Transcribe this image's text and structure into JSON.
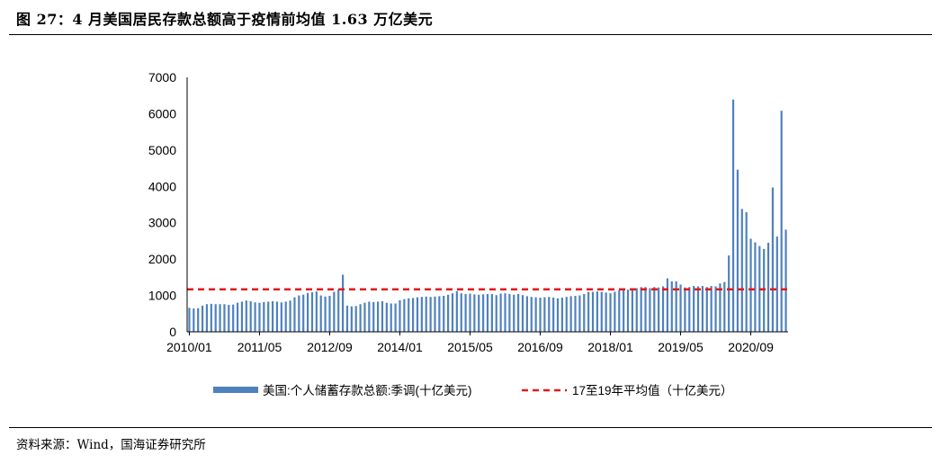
{
  "figure": {
    "title": "图 27：4 月美国居民存款总额高于疫情前均值 1.63 万亿美元",
    "source": "资料来源：Wind，国海证券研究所"
  },
  "chart_data": {
    "type": "bar",
    "y_ticks": [
      0,
      1000,
      2000,
      3000,
      4000,
      5000,
      6000,
      7000
    ],
    "ylim": [
      0,
      7000
    ],
    "x_tick_labels": [
      "2010/01",
      "2011/05",
      "2012/09",
      "2014/01",
      "2015/05",
      "2016/09",
      "2018/01",
      "2019/05",
      "2020/09"
    ],
    "grid": false,
    "legend_position": "bottom",
    "series": [
      {
        "name": "美国:个人储蓄存款总额:季调(十亿美元)",
        "type": "bar",
        "color": "#4f81bd",
        "start": "2010/01",
        "frequency": "monthly",
        "values": [
          660,
          640,
          650,
          720,
          760,
          770,
          760,
          760,
          760,
          740,
          750,
          800,
          830,
          860,
          840,
          810,
          800,
          820,
          830,
          840,
          830,
          810,
          830,
          860,
          950,
          1000,
          1020,
          1070,
          1090,
          1110,
          1000,
          970,
          990,
          1100,
          1160,
          1570,
          720,
          700,
          710,
          760,
          800,
          830,
          820,
          830,
          840,
          800,
          780,
          780,
          870,
          900,
          920,
          930,
          950,
          960,
          970,
          960,
          970,
          980,
          990,
          1020,
          1060,
          1120,
          1060,
          1040,
          1050,
          1030,
          1020,
          1030,
          1040,
          1040,
          1010,
          1050,
          1060,
          1040,
          1020,
          1040,
          1010,
          980,
          960,
          950,
          940,
          950,
          960,
          940,
          920,
          940,
          960,
          980,
          990,
          1000,
          1040,
          1100,
          1100,
          1110,
          1100,
          1080,
          1060,
          1100,
          1140,
          1150,
          1160,
          1170,
          1200,
          1230,
          1230,
          1200,
          1230,
          1220,
          1250,
          1470,
          1390,
          1390,
          1300,
          1220,
          1230,
          1260,
          1250,
          1260,
          1230,
          1260,
          1250,
          1330,
          1370,
          2100,
          6390,
          4460,
          3380,
          3290,
          2560,
          2460,
          2360,
          2280,
          2450,
          3970,
          2620,
          6080,
          2810
        ]
      },
      {
        "name": "17至19年平均值（十亿美元）",
        "type": "line",
        "style": "dashed",
        "color": "#e31a1c",
        "value": 1170
      }
    ]
  }
}
